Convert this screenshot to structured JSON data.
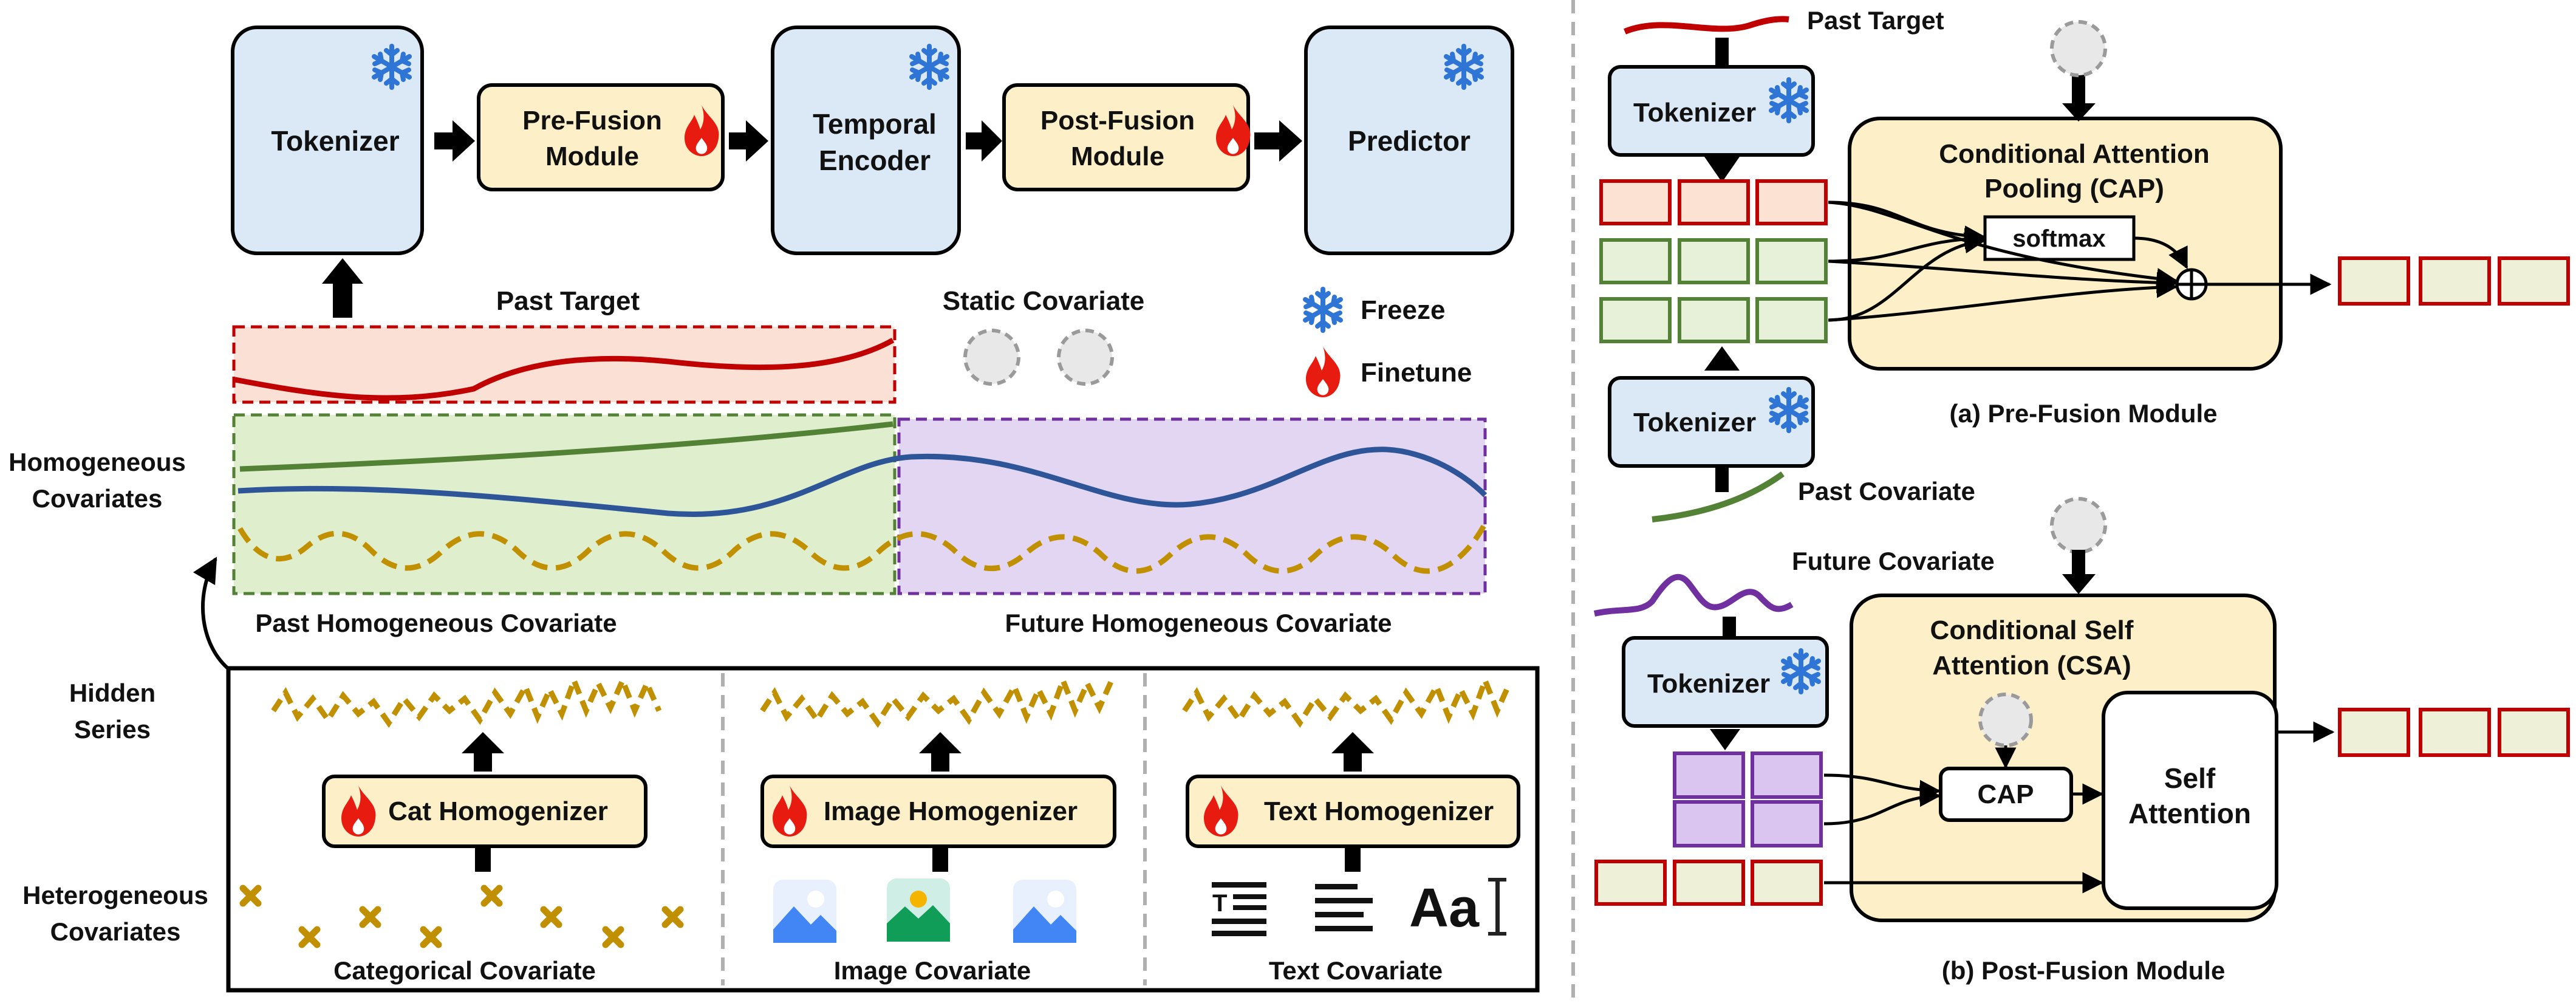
{
  "pipeline": {
    "tokenizer": "Tokenizer",
    "pre_fusion": [
      "Pre-Fusion",
      "Module"
    ],
    "temporal_encoder": [
      "Temporal",
      "Encoder"
    ],
    "post_fusion": [
      "Post-Fusion",
      "Module"
    ],
    "predictor": "Predictor"
  },
  "legend": {
    "past_target": "Past Target",
    "static_covariate": "Static Covariate",
    "freeze": "Freeze",
    "finetune": "Finetune"
  },
  "series_labels": {
    "homogeneous": [
      "Homogeneous",
      "Covariates"
    ],
    "past_homogeneous": "Past Homogeneous Covariate",
    "future_homogeneous": "Future Homogeneous Covariate",
    "hidden_series": [
      "Hidden",
      "Series"
    ],
    "heterogeneous": [
      "Heterogeneous",
      "Covariates"
    ]
  },
  "homogenizers": {
    "cat": "Cat Homogenizer",
    "image": "Image Homogenizer",
    "text": "Text Homogenizer",
    "cat_label": "Categorical Covariate",
    "image_label": "Image Covariate",
    "text_label": "Text Covariate",
    "text_glyph": "Aa"
  },
  "pre_fusion_panel": {
    "past_target": "Past Target",
    "tokenizer": "Tokenizer",
    "cap_title": [
      "Conditional Attention",
      "Pooling (CAP)"
    ],
    "softmax": "softmax",
    "past_covariate": "Past Covariate",
    "caption": "(a) Pre-Fusion Module"
  },
  "post_fusion_panel": {
    "future_covariate": "Future Covariate",
    "tokenizer": "Tokenizer",
    "csa_title": [
      "Conditional Self",
      "Attention (CSA)"
    ],
    "cap": "CAP",
    "self_attention": [
      "Self",
      "Attention"
    ],
    "caption": "(b) Post-Fusion Module"
  },
  "colors": {
    "blue_box": "#dbe8f5",
    "yellow_box": "#fdf0c8",
    "target_red": "#c00000",
    "green_series": "#538135",
    "blue_series": "#2e5597",
    "gold_series": "#c09000",
    "purple_series": "#7030a0",
    "snowflake": "#2e75d6",
    "flame": "#e81b10"
  }
}
